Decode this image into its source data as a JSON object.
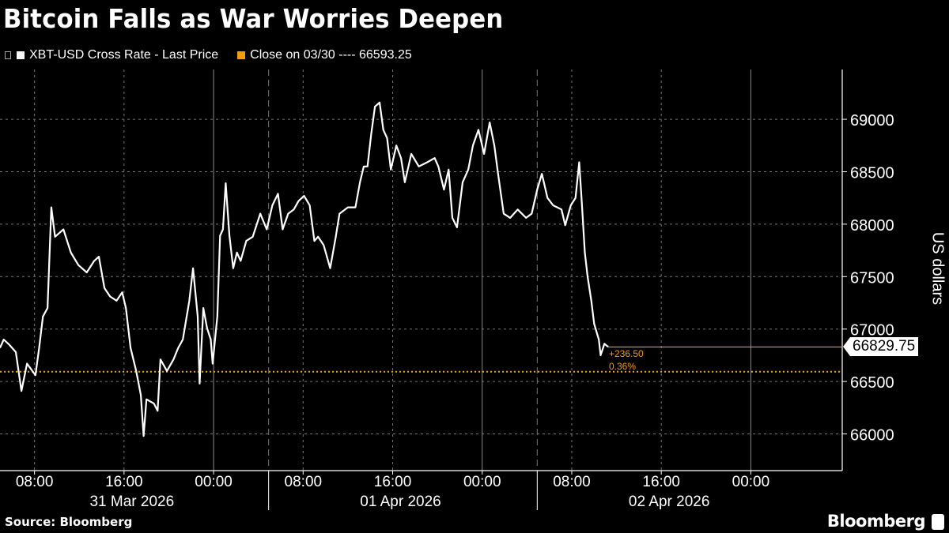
{
  "title": "Bitcoin Falls as War Worries Deepen",
  "legend": [
    {
      "label": "XBT-USD Cross Rate - Last Price",
      "color": "#ffffff"
    },
    {
      "label": "Close on 03/30 ---- 66593.25",
      "color": "#f39c12"
    }
  ],
  "source": "Source: Bloomberg",
  "logo_text": "Bloomberg",
  "chart_data": {
    "type": "line",
    "title": "Bitcoin Falls as War Worries Deepen",
    "ylabel": "US dollars",
    "y_axis_position": "right",
    "ylim": [
      65650,
      69475
    ],
    "xlim": [
      "2026-03-31T04:55",
      "2026-04-03T08:10"
    ],
    "yticks": [
      66000,
      66500,
      67000,
      67500,
      68000,
      68500,
      69000
    ],
    "ytick_labels": [
      "66000",
      "66500",
      "67000",
      "67500",
      "68000",
      "68500",
      "69000"
    ],
    "xticks": [
      {
        "t": "2026-03-31T08:00",
        "label": "08:00"
      },
      {
        "t": "2026-03-31T16:00",
        "label": "16:00"
      },
      {
        "t": "2026-04-01T00:00",
        "label": "00:00"
      },
      {
        "t": "2026-04-01T08:00",
        "label": "08:00"
      },
      {
        "t": "2026-04-01T16:00",
        "label": "16:00"
      },
      {
        "t": "2026-04-02T00:00",
        "label": "00:00"
      },
      {
        "t": "2026-04-02T08:00",
        "label": "08:00"
      },
      {
        "t": "2026-04-02T16:00",
        "label": "16:00"
      },
      {
        "t": "2026-04-03T00:00",
        "label": "00:00"
      }
    ],
    "date_groups": [
      {
        "start": "2026-03-31T04:55",
        "end": "2026-04-01T04:55",
        "label": "31 Mar 2026"
      },
      {
        "start": "2026-04-01T04:55",
        "end": "2026-04-02T04:55",
        "label": "01 Apr 2026"
      },
      {
        "start": "2026-04-02T04:55",
        "end": "2026-04-03T04:55",
        "label": "02 Apr 2026"
      }
    ],
    "grid": true,
    "legend_position": "top-left",
    "reference_line": {
      "name": "Close on 03/30",
      "value": 66593.25,
      "color": "#f39c12",
      "style": "dotted"
    },
    "last_value": {
      "value": "66829.75",
      "change": "+236.50",
      "change_pct": "0.36%"
    },
    "series": [
      {
        "name": "XBT-USD Cross Rate - Last Price",
        "color": "#ffffff",
        "points": [
          [
            "2026-03-31T04:55",
            66820
          ],
          [
            "2026-03-31T05:15",
            66900
          ],
          [
            "2026-03-31T05:45",
            66850
          ],
          [
            "2026-03-31T06:20",
            66780
          ],
          [
            "2026-03-31T06:50",
            66410
          ],
          [
            "2026-03-31T07:20",
            66670
          ],
          [
            "2026-03-31T08:05",
            66560
          ],
          [
            "2026-03-31T08:25",
            66820
          ],
          [
            "2026-03-31T08:45",
            67120
          ],
          [
            "2026-03-31T09:10",
            67200
          ],
          [
            "2026-03-31T09:30",
            68160
          ],
          [
            "2026-03-31T09:50",
            67880
          ],
          [
            "2026-03-31T10:35",
            67950
          ],
          [
            "2026-03-31T11:15",
            67730
          ],
          [
            "2026-03-31T11:55",
            67610
          ],
          [
            "2026-03-31T12:40",
            67540
          ],
          [
            "2026-03-31T13:20",
            67650
          ],
          [
            "2026-03-31T13:45",
            67690
          ],
          [
            "2026-03-31T14:15",
            67390
          ],
          [
            "2026-03-31T14:45",
            67310
          ],
          [
            "2026-03-31T15:20",
            67270
          ],
          [
            "2026-03-31T15:50",
            67350
          ],
          [
            "2026-03-31T16:10",
            67200
          ],
          [
            "2026-03-31T16:35",
            66820
          ],
          [
            "2026-03-31T17:05",
            66600
          ],
          [
            "2026-03-31T17:30",
            66370
          ],
          [
            "2026-03-31T17:45",
            65980
          ],
          [
            "2026-03-31T18:00",
            66330
          ],
          [
            "2026-03-31T18:40",
            66290
          ],
          [
            "2026-03-31T19:00",
            66220
          ],
          [
            "2026-03-31T19:15",
            66710
          ],
          [
            "2026-03-31T19:50",
            66600
          ],
          [
            "2026-03-31T20:25",
            66710
          ],
          [
            "2026-03-31T20:50",
            66820
          ],
          [
            "2026-03-31T21:15",
            66900
          ],
          [
            "2026-03-31T21:50",
            67270
          ],
          [
            "2026-03-31T22:10",
            67580
          ],
          [
            "2026-03-31T22:35",
            67120
          ],
          [
            "2026-03-31T22:45",
            66480
          ],
          [
            "2026-03-31T23:05",
            67200
          ],
          [
            "2026-03-31T23:25",
            67010
          ],
          [
            "2026-03-31T23:45",
            66900
          ],
          [
            "2026-03-31T23:55",
            66670
          ],
          [
            "2026-04-01T00:20",
            67120
          ],
          [
            "2026-04-01T00:35",
            67890
          ],
          [
            "2026-04-01T00:50",
            67950
          ],
          [
            "2026-04-01T01:05",
            68390
          ],
          [
            "2026-04-01T01:25",
            67890
          ],
          [
            "2026-04-01T01:45",
            67580
          ],
          [
            "2026-04-01T02:05",
            67730
          ],
          [
            "2026-04-01T02:25",
            67650
          ],
          [
            "2026-04-01T02:55",
            67840
          ],
          [
            "2026-04-01T03:30",
            67880
          ],
          [
            "2026-04-01T04:10",
            68100
          ],
          [
            "2026-04-01T04:45",
            67950
          ],
          [
            "2026-04-01T05:15",
            68180
          ],
          [
            "2026-04-01T05:45",
            68290
          ],
          [
            "2026-04-01T06:10",
            67950
          ],
          [
            "2026-04-01T06:40",
            68100
          ],
          [
            "2026-04-01T07:10",
            68140
          ],
          [
            "2026-04-01T07:35",
            68220
          ],
          [
            "2026-04-01T08:05",
            68270
          ],
          [
            "2026-04-01T08:35",
            68180
          ],
          [
            "2026-04-01T09:00",
            67840
          ],
          [
            "2026-04-01T09:20",
            67880
          ],
          [
            "2026-04-01T09:50",
            67800
          ],
          [
            "2026-04-01T10:25",
            67580
          ],
          [
            "2026-04-01T10:55",
            67880
          ],
          [
            "2026-04-01T11:15",
            68100
          ],
          [
            "2026-04-01T12:00",
            68160
          ],
          [
            "2026-04-01T12:40",
            68160
          ],
          [
            "2026-04-01T13:05",
            68400
          ],
          [
            "2026-04-01T13:25",
            68550
          ],
          [
            "2026-04-01T13:45",
            68550
          ],
          [
            "2026-04-01T14:05",
            68860
          ],
          [
            "2026-04-01T14:25",
            69120
          ],
          [
            "2026-04-01T14:50",
            69160
          ],
          [
            "2026-04-01T15:10",
            68900
          ],
          [
            "2026-04-01T15:30",
            68820
          ],
          [
            "2026-04-01T15:50",
            68520
          ],
          [
            "2026-04-01T16:20",
            68750
          ],
          [
            "2026-04-01T16:45",
            68630
          ],
          [
            "2026-04-01T17:05",
            68400
          ],
          [
            "2026-04-01T17:40",
            68670
          ],
          [
            "2026-04-01T18:20",
            68550
          ],
          [
            "2026-04-01T19:05",
            68590
          ],
          [
            "2026-04-01T19:45",
            68630
          ],
          [
            "2026-04-01T20:05",
            68550
          ],
          [
            "2026-04-01T20:35",
            68330
          ],
          [
            "2026-04-01T21:00",
            68520
          ],
          [
            "2026-04-01T21:20",
            68060
          ],
          [
            "2026-04-01T21:45",
            67970
          ],
          [
            "2026-04-01T22:15",
            68400
          ],
          [
            "2026-04-01T22:45",
            68520
          ],
          [
            "2026-04-01T23:10",
            68750
          ],
          [
            "2026-04-01T23:40",
            68900
          ],
          [
            "2026-04-02T00:10",
            68670
          ],
          [
            "2026-04-02T00:40",
            68970
          ],
          [
            "2026-04-02T01:05",
            68750
          ],
          [
            "2026-04-02T01:25",
            68480
          ],
          [
            "2026-04-02T01:55",
            68100
          ],
          [
            "2026-04-02T02:30",
            68060
          ],
          [
            "2026-04-02T03:10",
            68140
          ],
          [
            "2026-04-02T03:55",
            68060
          ],
          [
            "2026-04-02T04:25",
            68100
          ],
          [
            "2026-04-02T04:55",
            68330
          ],
          [
            "2026-04-02T05:20",
            68480
          ],
          [
            "2026-04-02T05:50",
            68250
          ],
          [
            "2026-04-02T06:20",
            68180
          ],
          [
            "2026-04-02T07:05",
            68140
          ],
          [
            "2026-04-02T07:25",
            67990
          ],
          [
            "2026-04-02T07:55",
            68180
          ],
          [
            "2026-04-02T08:20",
            68250
          ],
          [
            "2026-04-02T08:40",
            68590
          ],
          [
            "2026-04-02T08:55",
            68180
          ],
          [
            "2026-04-02T09:10",
            67730
          ],
          [
            "2026-04-02T09:25",
            67500
          ],
          [
            "2026-04-02T09:45",
            67270
          ],
          [
            "2026-04-02T10:00",
            67050
          ],
          [
            "2026-04-02T10:25",
            66900
          ],
          [
            "2026-04-02T10:35",
            66750
          ],
          [
            "2026-04-02T10:55",
            66860
          ],
          [
            "2026-04-02T11:15",
            66829.75
          ]
        ]
      }
    ]
  }
}
